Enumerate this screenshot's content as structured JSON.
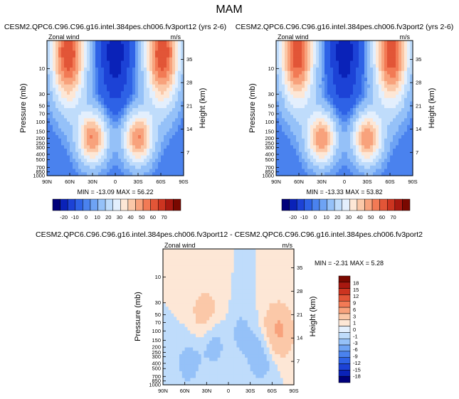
{
  "figure": {
    "title": "MAM"
  },
  "colors": {
    "absolute_scale": [
      "#00007a",
      "#0a22b8",
      "#1c42d6",
      "#2e62e6",
      "#4a82ee",
      "#6ea3f4",
      "#95c1f8",
      "#bfdcfb",
      "#e3effd",
      "#fde7d6",
      "#fbc8a8",
      "#f8a27c",
      "#f27a55",
      "#e25537",
      "#cc3420",
      "#a81810",
      "#7a0800"
    ],
    "diff_scale": [
      "#00007a",
      "#0a22b8",
      "#1c42d6",
      "#2e62e6",
      "#4a82ee",
      "#6ea3f4",
      "#95c1f8",
      "#bfdcfb",
      "#e3effd",
      "#fde7d6",
      "#fbc8a8",
      "#f8a27c",
      "#f27a55",
      "#e25537",
      "#cc3420",
      "#a81810",
      "#7a0800"
    ]
  },
  "chart_data": [
    {
      "type": "heatmap",
      "title": "CESM2.QPC6.C96.C96.g16.intel.384pes.ch006.fv3port12 (yrs 2-6)",
      "variable": "Zonal wind",
      "units": "m/s",
      "xlabel": "",
      "ylabel": "Pressure (mb)",
      "y2label": "Height (km)",
      "x_ticks": [
        "90N",
        "60N",
        "30N",
        "0",
        "30S",
        "60S",
        "90S"
      ],
      "y_ticks": [
        "10",
        "30",
        "50",
        "70",
        "100",
        "150",
        "200",
        "250",
        "300",
        "400",
        "500",
        "700",
        "850",
        "1000"
      ],
      "y2_ticks": [
        "35",
        "28",
        "21",
        "14",
        "7"
      ],
      "stats": "MIN = -13.09   MAX = 56.22",
      "min": -13.09,
      "max": 56.22,
      "colorbar_labels": [
        "-20",
        "-10",
        "0",
        "10",
        "20",
        "30",
        "40",
        "50",
        "60",
        "70"
      ],
      "features": [
        {
          "lat": -62,
          "p": 5,
          "u": 45
        },
        {
          "lat": 62,
          "p": 5,
          "u": 45
        },
        {
          "lat": -30,
          "p": 200,
          "u": 35
        },
        {
          "lat": 30,
          "p": 200,
          "u": 35
        },
        {
          "lat": 0,
          "p": 5,
          "u": -13
        }
      ]
    },
    {
      "type": "heatmap",
      "title": "CESM2.QPC6.C96.C96.g16.intel.384pes.ch006.fv3port2 (yrs 2-6)",
      "variable": "Zonal wind",
      "units": "m/s",
      "xlabel": "",
      "ylabel": "Pressure (mb)",
      "y2label": "Height (km)",
      "x_ticks": [
        "90N",
        "60N",
        "30N",
        "0",
        "30S",
        "60S",
        "90S"
      ],
      "y_ticks": [
        "10",
        "30",
        "50",
        "70",
        "100",
        "150",
        "200",
        "250",
        "300",
        "400",
        "500",
        "700",
        "850",
        "1000"
      ],
      "y2_ticks": [
        "35",
        "28",
        "21",
        "14",
        "7"
      ],
      "stats": "MIN = -13.33   MAX = 53.82",
      "min": -13.33,
      "max": 53.82,
      "colorbar_labels": [
        "-20",
        "-10",
        "0",
        "10",
        "20",
        "30",
        "40",
        "50",
        "60",
        "70"
      ],
      "features": [
        {
          "lat": -62,
          "p": 5,
          "u": 44
        },
        {
          "lat": 62,
          "p": 5,
          "u": 44
        },
        {
          "lat": -30,
          "p": 200,
          "u": 34
        },
        {
          "lat": 30,
          "p": 200,
          "u": 34
        },
        {
          "lat": 0,
          "p": 5,
          "u": -13
        }
      ]
    },
    {
      "type": "heatmap",
      "title": "CESM2.QPC6.C96.C96.g16.intel.384pes.ch006.fv3port12 - CESM2.QPC6.C96.C96.g16.intel.384pes.ch006.fv3port2",
      "variable": "Zonal wind",
      "units": "m/s",
      "xlabel": "",
      "ylabel": "Pressure (mb)",
      "y2label": "Height (km)",
      "x_ticks": [
        "90N",
        "60N",
        "30N",
        "0",
        "30S",
        "60S",
        "90S"
      ],
      "y_ticks": [
        "10",
        "30",
        "50",
        "70",
        "100",
        "150",
        "200",
        "250",
        "300",
        "400",
        "500",
        "700",
        "850",
        "1000"
      ],
      "y2_ticks": [
        "35",
        "28",
        "21",
        "14",
        "7"
      ],
      "stats": "MIN = -2.31   MAX =  5.28",
      "min": -2.31,
      "max": 5.28,
      "colorbar_labels": [
        "18",
        "15",
        "12",
        "9",
        "6",
        "3",
        "1",
        "0",
        "-1",
        "-3",
        "-6",
        "-9",
        "-12",
        "-15",
        "-18"
      ],
      "features": [
        {
          "lat": -68,
          "p": 100,
          "u": 3.5
        },
        {
          "lat": 0,
          "p": 100,
          "u": 1.5
        },
        {
          "lat": -12,
          "p": 100,
          "u": -2
        },
        {
          "lat": 18,
          "p": 150,
          "u": -2
        },
        {
          "lat": 32,
          "p": 50,
          "u": 2
        },
        {
          "lat": -45,
          "p": 300,
          "u": -2
        },
        {
          "lat": 55,
          "p": 400,
          "u": -1.5
        }
      ]
    }
  ]
}
